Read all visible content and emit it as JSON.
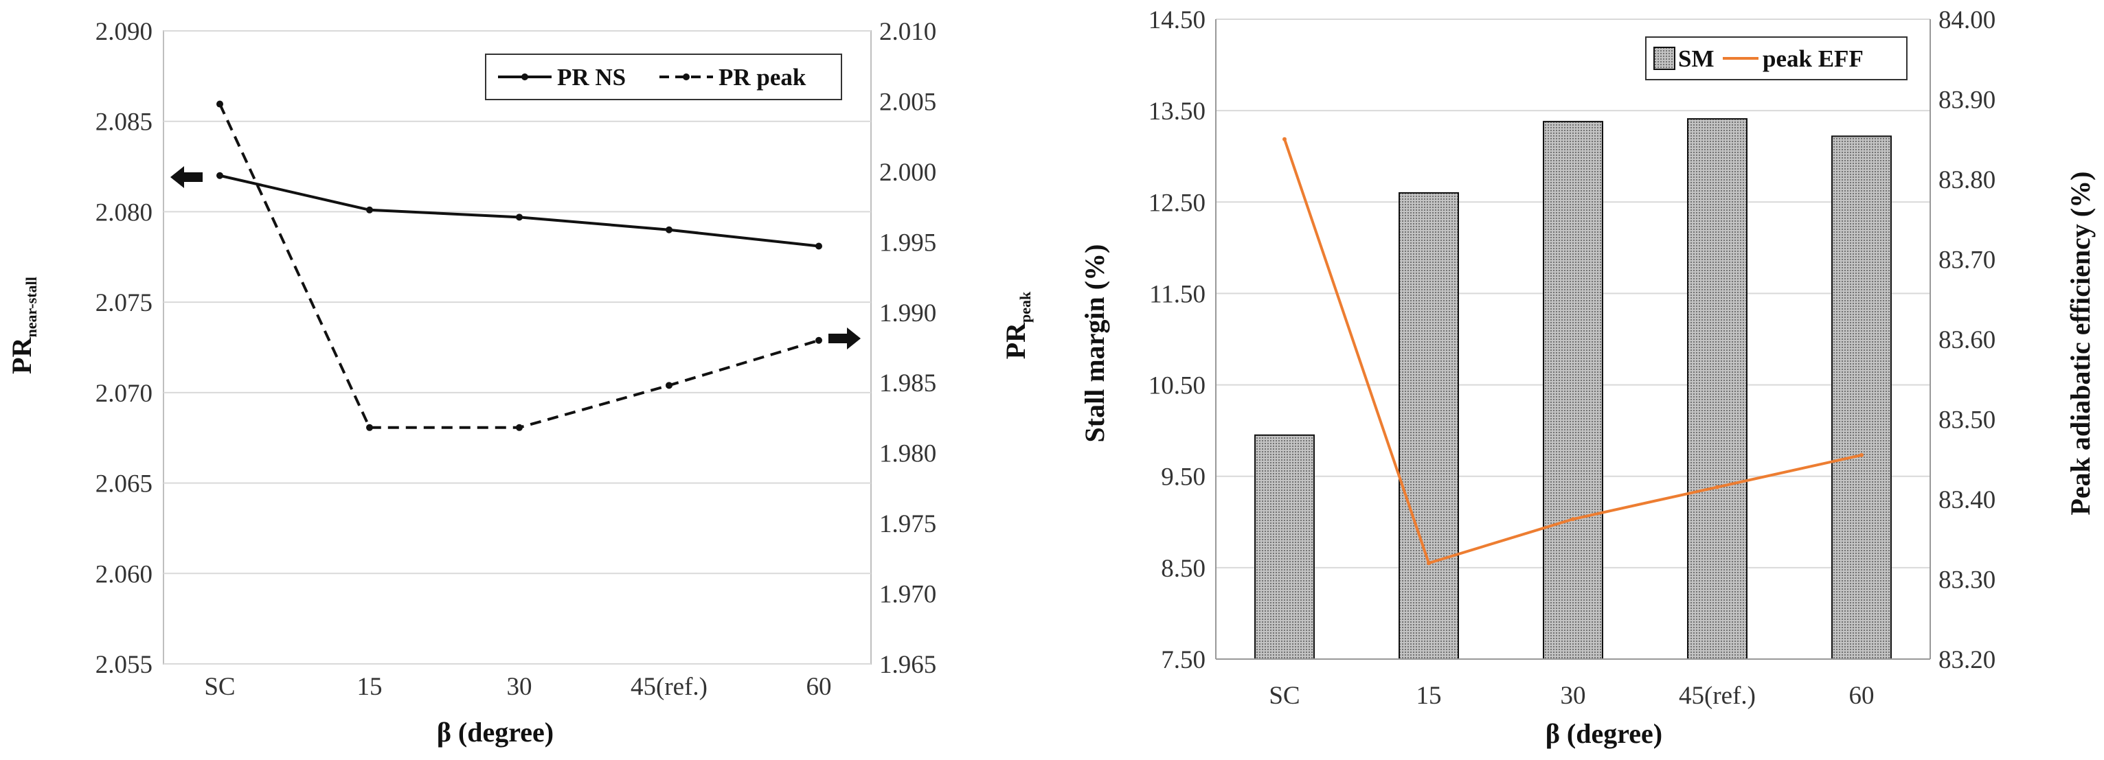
{
  "chart_data": [
    {
      "type": "line",
      "categories": [
        "SC",
        "15",
        "30",
        "45(ref.)",
        "60"
      ],
      "xlabel": "β (degree)",
      "ylabel_left": {
        "base": "PR",
        "sub": "near-stall"
      },
      "ylabel_right": {
        "base": "PR",
        "sub": "peak"
      },
      "ylim_left": [
        2.055,
        2.09
      ],
      "yticks_left": [
        "2.055",
        "2.060",
        "2.065",
        "2.070",
        "2.075",
        "2.080",
        "2.085",
        "2.090"
      ],
      "ylim_right": [
        1.965,
        2.01
      ],
      "yticks_right": [
        "1.965",
        "1.970",
        "1.975",
        "1.980",
        "1.985",
        "1.990",
        "1.995",
        "2.000",
        "2.005",
        "2.010"
      ],
      "grid": true,
      "legend": "top-right",
      "series": [
        {
          "name": "PR NS",
          "axis": "left",
          "style": "solid",
          "color": "#111111",
          "values": [
            2.082,
            2.0801,
            2.0797,
            2.079,
            2.0781
          ]
        },
        {
          "name": "PR peak",
          "axis": "right",
          "style": "dashed",
          "color": "#111111",
          "values": [
            2.0048,
            1.9818,
            1.9818,
            1.9848,
            1.988
          ]
        }
      ],
      "annotations": [
        {
          "type": "arrow",
          "direction": "left",
          "meaning": "PR NS uses left axis"
        },
        {
          "type": "arrow",
          "direction": "right",
          "meaning": "PR peak uses right axis"
        }
      ]
    },
    {
      "type": "bar",
      "categories": [
        "SC",
        "15",
        "30",
        "45(ref.)",
        "60"
      ],
      "xlabel": "β (degree)",
      "ylabel_left": "Stall margin (%)",
      "ylabel_right": "Peak adiabatic efficiency (%)",
      "ylim_left": [
        7.5,
        14.5
      ],
      "yticks_left": [
        "7.50",
        "8.50",
        "9.50",
        "10.50",
        "11.50",
        "12.50",
        "13.50",
        "14.50"
      ],
      "ylim_right": [
        83.2,
        84.0
      ],
      "yticks_right": [
        "83.20",
        "83.30",
        "83.40",
        "83.50",
        "83.60",
        "83.70",
        "83.80",
        "83.90",
        "84.00"
      ],
      "grid": true,
      "legend": "top-right",
      "series": [
        {
          "name": "SM",
          "kind": "bar",
          "axis": "left",
          "color": "#b0b0b0",
          "values": [
            9.95,
            12.6,
            13.38,
            13.41,
            13.22
          ]
        },
        {
          "name": "peak EFF",
          "kind": "line",
          "axis": "right",
          "color": "#ed7d31",
          "values": [
            83.85,
            83.32,
            83.375,
            83.415,
            83.455
          ]
        }
      ]
    }
  ]
}
